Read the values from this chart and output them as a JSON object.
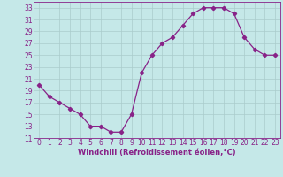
{
  "x": [
    0,
    1,
    2,
    3,
    4,
    5,
    6,
    7,
    8,
    9,
    10,
    11,
    12,
    13,
    14,
    15,
    16,
    17,
    18,
    19,
    20,
    21,
    22,
    23
  ],
  "y": [
    20,
    18,
    17,
    16,
    15,
    13,
    13,
    12,
    12,
    15,
    22,
    25,
    27,
    28,
    30,
    32,
    33,
    33,
    33,
    32,
    28,
    26,
    25,
    25
  ],
  "line_color": "#882288",
  "marker": "D",
  "marker_size": 2.2,
  "bg_color": "#c5e8e8",
  "grid_color": "#aacccc",
  "xlabel": "Windchill (Refroidissement éolien,°C)",
  "xlabel_color": "#882288",
  "tick_color": "#882288",
  "ylim": [
    11,
    34
  ],
  "xlim": [
    -0.5,
    23.5
  ],
  "yticks": [
    11,
    13,
    15,
    17,
    19,
    21,
    23,
    25,
    27,
    29,
    31,
    33
  ],
  "xticks": [
    0,
    1,
    2,
    3,
    4,
    5,
    6,
    7,
    8,
    9,
    10,
    11,
    12,
    13,
    14,
    15,
    16,
    17,
    18,
    19,
    20,
    21,
    22,
    23
  ],
  "tick_fontsize": 5.5,
  "xlabel_fontsize": 6.0
}
